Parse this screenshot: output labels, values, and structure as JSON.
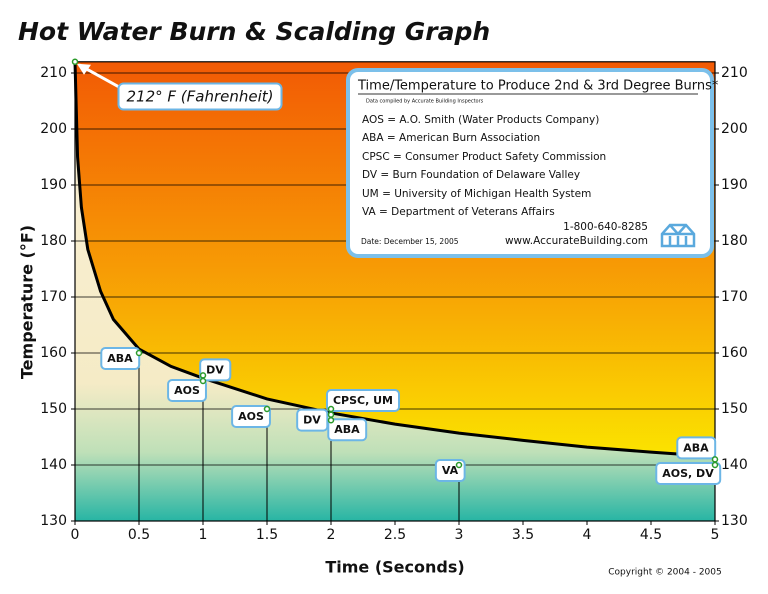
{
  "chart_data": {
    "type": "line",
    "title": "Hot Water Burn & Scalding Graph",
    "xlabel": "Time (Seconds)",
    "ylabel": "Temperature (°F)",
    "xlim": [
      0,
      5
    ],
    "ylim": [
      130,
      212
    ],
    "xticks": [
      0,
      0.5,
      1,
      1.5,
      2,
      2.5,
      3,
      3.5,
      4,
      4.5,
      5
    ],
    "yticks": [
      130,
      140,
      150,
      160,
      170,
      180,
      190,
      200,
      210
    ],
    "grid": true,
    "x": [
      0,
      0.02,
      0.05,
      0.1,
      0.2,
      0.3,
      0.5,
      0.75,
      1,
      1.5,
      2,
      2.5,
      3,
      3.5,
      4,
      4.5,
      5
    ],
    "series": [
      {
        "color": "#000000",
        "values": [
          212,
          195,
          186,
          178.5,
          171,
          166,
          160.7,
          157.6,
          155.5,
          151.8,
          149.3,
          147.3,
          145.7,
          144.4,
          143.2,
          142.3,
          141.5
        ]
      }
    ],
    "points": [
      {
        "label": "ABA",
        "x": 0.5,
        "y": 160
      },
      {
        "label": "AOS",
        "x": 1,
        "y": 155
      },
      {
        "label": "DV",
        "x": 1,
        "y": 156
      },
      {
        "label": "AOS",
        "x": 1.5,
        "y": 150
      },
      {
        "label": "CPSC, UM",
        "x": 2,
        "y": 150
      },
      {
        "label": "DV",
        "x": 2,
        "y": 149
      },
      {
        "label": "ABA",
        "x": 2,
        "y": 148
      },
      {
        "label": "VA",
        "x": 3,
        "y": 140
      },
      {
        "label": "ABA",
        "x": 5,
        "y": 141
      },
      {
        "label": "AOS, DV",
        "x": 5,
        "y": 140
      }
    ],
    "annotation": {
      "text": "212° F (Fahrenheit)",
      "x": 0,
      "y": 212
    }
  },
  "info_box": {
    "title": "Time/Temperature to Produce 2nd & 3rd Degree Burns*",
    "note": "Data compiled by Accurate Building Inspectors",
    "lines": [
      "AOS = A.O. Smith (Water Products Company)",
      "ABA = American Burn Association",
      "CPSC = Consumer Product Safety Commission",
      "DV = Burn Foundation of Delaware Valley",
      "UM = University of Michigan Health System",
      "VA = Department of Veterans Affairs"
    ],
    "phone": "1-800-640-8285",
    "website": "www.AccurateBuilding.com",
    "date": "Date: December 15, 2005"
  },
  "copyright": "Copyright © 2004 - 2005"
}
